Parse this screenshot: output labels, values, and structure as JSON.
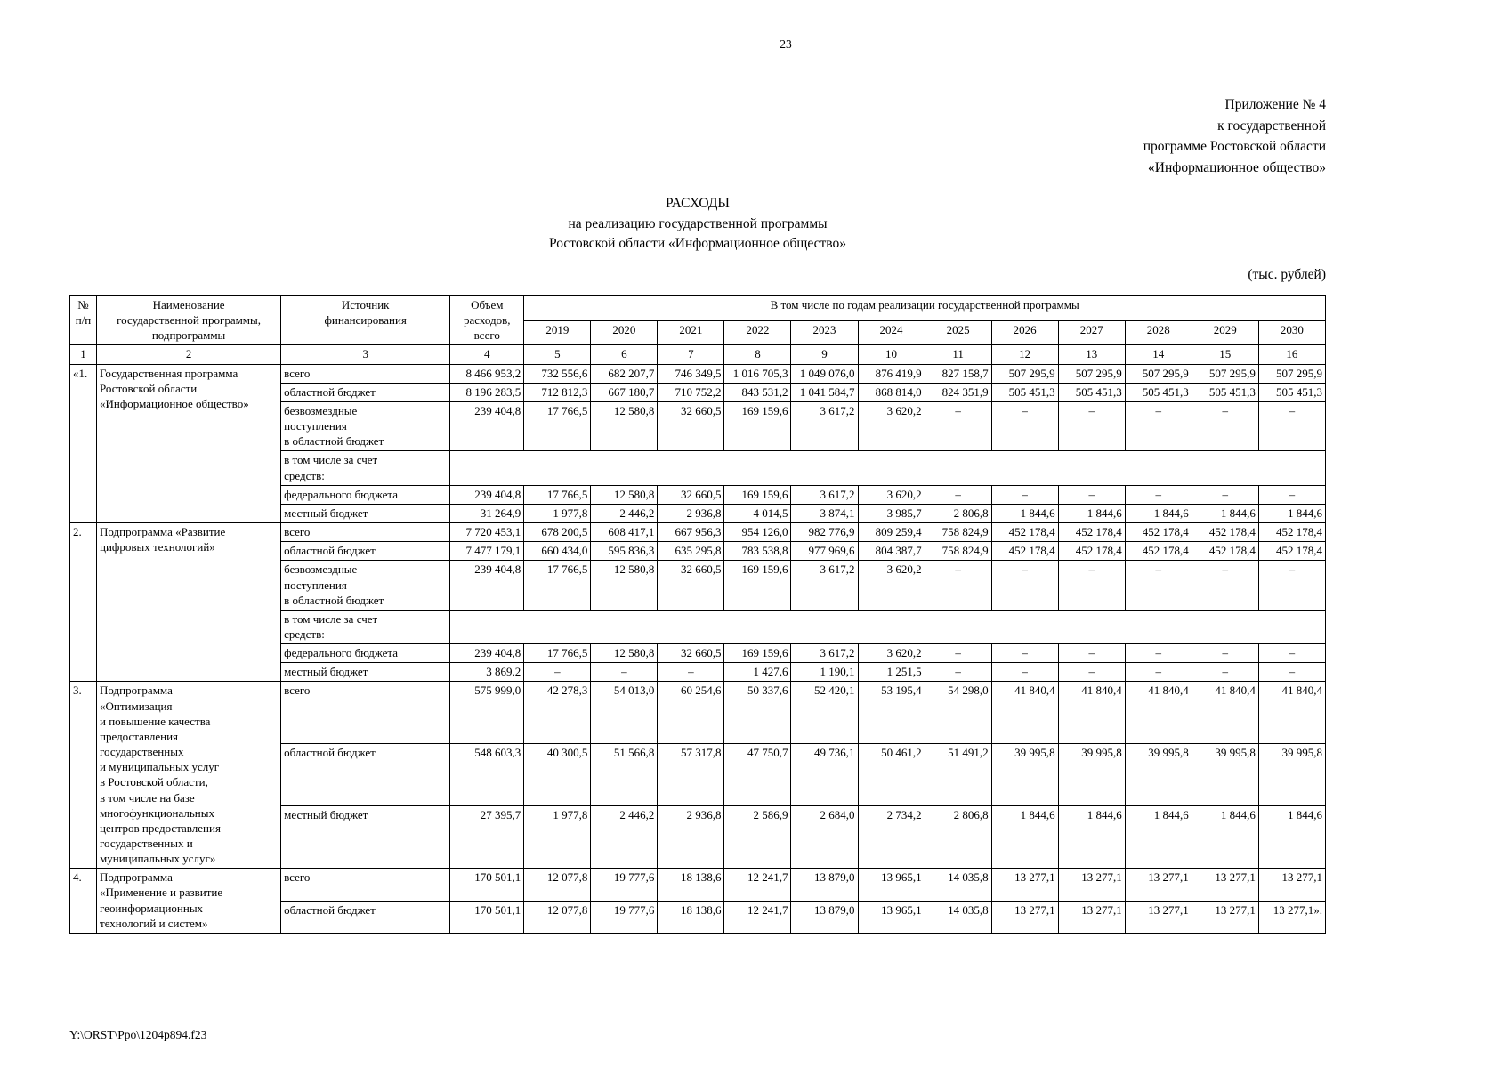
{
  "page": {
    "number": "23",
    "appendix_lines": [
      "Приложение № 4",
      "к государственной",
      "программе Ростовской области",
      "«Информационное общество»"
    ],
    "title_lines": [
      "РАСХОДЫ",
      "на реализацию государственной программы",
      "Ростовской области «Информационное общество»"
    ],
    "units_note": "(тыс. рублей)",
    "footer_path": "Y:\\ORST\\Ppo\\1204p894.f23"
  },
  "table": {
    "header": {
      "col_num": "№\nп/п",
      "col_name": "Наименование\nгосударственной программы,\nподпрограммы",
      "col_source": "Источник\nфинансирования",
      "col_total": "Объем\nрасходов,\nвсего",
      "years_group": "В том числе по годам реализации государственной программы",
      "years": [
        "2019",
        "2020",
        "2021",
        "2022",
        "2023",
        "2024",
        "2025",
        "2026",
        "2027",
        "2028",
        "2029",
        "2030"
      ]
    },
    "column_numbers": [
      "1",
      "2",
      "3",
      "4",
      "5",
      "6",
      "7",
      "8",
      "9",
      "10",
      "11",
      "12",
      "13",
      "14",
      "15",
      "16"
    ],
    "rows": [
      {
        "num": "«1.",
        "name": "Государственная программа\nРостовской области\n«Информационное общество»",
        "sources": [
          {
            "label": "всего",
            "cells": [
              "8 466 953,2",
              "732 556,6",
              "682 207,7",
              "746 349,5",
              "1 016 705,3",
              "1 049 076,0",
              "876 419,9",
              "827 158,7",
              "507 295,9",
              "507 295,9",
              "507 295,9",
              "507 295,9",
              "507 295,9"
            ]
          },
          {
            "label": "областной бюджет",
            "cells": [
              "8 196 283,5",
              "712 812,3",
              "667 180,7",
              "710 752,2",
              "843 531,2",
              "1 041 584,7",
              "868 814,0",
              "824 351,9",
              "505 451,3",
              "505 451,3",
              "505 451,3",
              "505 451,3",
              "505 451,3"
            ]
          },
          {
            "label": "безвозмездные\nпоступления\nв областной бюджет",
            "cells": [
              "239 404,8",
              "17 766,5",
              "12 580,8",
              "32 660,5",
              "169 159,6",
              "3 617,2",
              "3 620,2",
              "–",
              "–",
              "–",
              "–",
              "–",
              "–"
            ]
          },
          {
            "label": "в том числе за счет\nсредств:"
          },
          {
            "label": "федерального бюджета",
            "cells": [
              "239 404,8",
              "17 766,5",
              "12 580,8",
              "32 660,5",
              "169 159,6",
              "3 617,2",
              "3 620,2",
              "–",
              "–",
              "–",
              "–",
              "–",
              "–"
            ]
          },
          {
            "label": "местный бюджет",
            "cells": [
              "31 264,9",
              "1 977,8",
              "2 446,2",
              "2 936,8",
              "4 014,5",
              "3 874,1",
              "3 985,7",
              "2 806,8",
              "1 844,6",
              "1 844,6",
              "1 844,6",
              "1 844,6",
              "1 844,6"
            ]
          }
        ]
      },
      {
        "num": "2.",
        "name": "Подпрограмма «Развитие\nцифровых технологий»",
        "sources": [
          {
            "label": "всего",
            "cells": [
              "7 720 453,1",
              "678 200,5",
              "608 417,1",
              "667 956,3",
              "954 126,0",
              "982 776,9",
              "809 259,4",
              "758 824,9",
              "452 178,4",
              "452 178,4",
              "452 178,4",
              "452 178,4",
              "452 178,4"
            ]
          },
          {
            "label": "областной бюджет",
            "cells": [
              "7 477 179,1",
              "660 434,0",
              "595 836,3",
              "635 295,8",
              "783 538,8",
              "977 969,6",
              "804 387,7",
              "758 824,9",
              "452 178,4",
              "452 178,4",
              "452 178,4",
              "452 178,4",
              "452 178,4"
            ]
          },
          {
            "label": "безвозмездные\nпоступления\nв областной бюджет",
            "cells": [
              "239 404,8",
              "17 766,5",
              "12 580,8",
              "32 660,5",
              "169 159,6",
              "3 617,2",
              "3 620,2",
              "–",
              "–",
              "–",
              "–",
              "–",
              "–"
            ]
          },
          {
            "label": "в том числе за счет\nсредств:"
          },
          {
            "label": "федерального бюджета",
            "cells": [
              "239 404,8",
              "17 766,5",
              "12 580,8",
              "32 660,5",
              "169 159,6",
              "3 617,2",
              "3 620,2",
              "–",
              "–",
              "–",
              "–",
              "–",
              "–"
            ]
          },
          {
            "label": "местный бюджет",
            "cells": [
              "3 869,2",
              "–",
              "–",
              "–",
              "1 427,6",
              "1 190,1",
              "1 251,5",
              "–",
              "–",
              "–",
              "–",
              "–",
              "–"
            ]
          }
        ]
      },
      {
        "num": "3.",
        "name": "Подпрограмма\n«Оптимизация\nи повышение качества\nпредоставления\nгосударственных\nи муниципальных услуг\nв Ростовской области,\nв том числе на базе\nмногофункциональных\nцентров предоставления\nгосударственных и\nмуниципальных услуг»",
        "sources": [
          {
            "label": "всего",
            "cells": [
              "575 999,0",
              "42 278,3",
              "54 013,0",
              "60 254,6",
              "50 337,6",
              "52 420,1",
              "53 195,4",
              "54 298,0",
              "41 840,4",
              "41 840,4",
              "41 840,4",
              "41 840,4",
              "41 840,4"
            ]
          },
          {
            "label": "областной бюджет",
            "cells": [
              "548 603,3",
              "40 300,5",
              "51 566,8",
              "57 317,8",
              "47 750,7",
              "49 736,1",
              "50 461,2",
              "51 491,2",
              "39 995,8",
              "39 995,8",
              "39 995,8",
              "39 995,8",
              "39 995,8"
            ]
          },
          {
            "label": "местный бюджет",
            "cells": [
              "27 395,7",
              "1 977,8",
              "2 446,2",
              "2 936,8",
              "2 586,9",
              "2 684,0",
              "2 734,2",
              "2 806,8",
              "1 844,6",
              "1 844,6",
              "1 844,6",
              "1 844,6",
              "1 844,6"
            ]
          }
        ]
      },
      {
        "num": "4.",
        "name": "Подпрограмма\n«Применение и развитие\nгеоинформационных\nтехнологий и систем»",
        "sources": [
          {
            "label": "всего",
            "cells": [
              "170 501,1",
              "12 077,8",
              "19 777,6",
              "18 138,6",
              "12 241,7",
              "13 879,0",
              "13 965,1",
              "14 035,8",
              "13 277,1",
              "13 277,1",
              "13 277,1",
              "13 277,1",
              "13 277,1"
            ]
          },
          {
            "label": "областной бюджет",
            "cells": [
              "170 501,1",
              "12 077,8",
              "19 777,6",
              "18 138,6",
              "12 241,7",
              "13 879,0",
              "13 965,1",
              "14 035,8",
              "13 277,1",
              "13 277,1",
              "13 277,1",
              "13 277,1",
              "13 277,1»."
            ]
          }
        ]
      }
    ]
  }
}
